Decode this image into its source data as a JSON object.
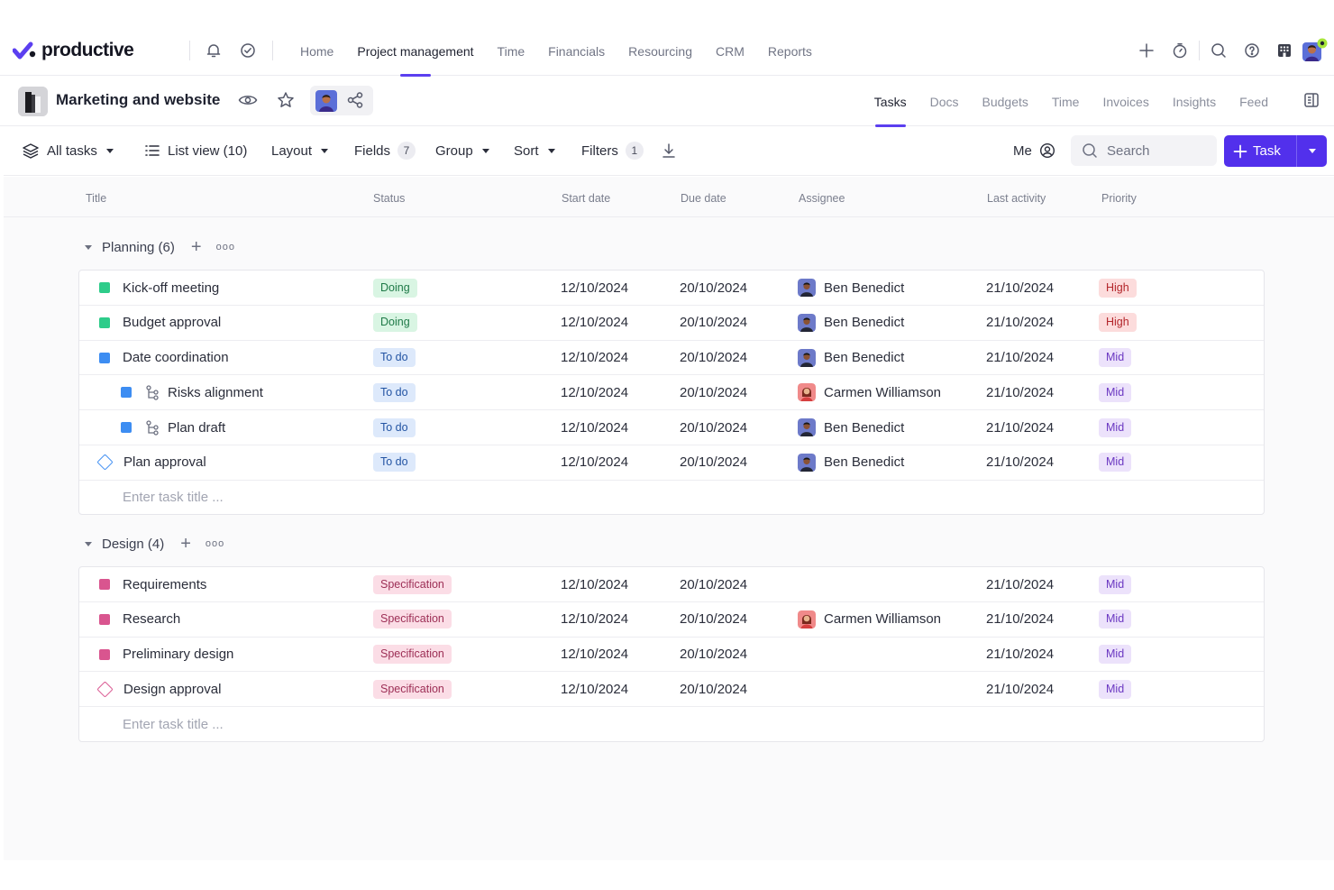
{
  "app": {
    "logo_text": "productive"
  },
  "topnav": {
    "items": [
      "Home",
      "Project management",
      "Time",
      "Financials",
      "Resourcing",
      "CRM",
      "Reports"
    ],
    "active_index": 1
  },
  "project": {
    "title": "Marketing and website",
    "tabs": [
      "Tasks",
      "Docs",
      "Budgets",
      "Time",
      "Invoices",
      "Insights",
      "Feed"
    ],
    "active_tab": 0
  },
  "toolbar": {
    "all_tasks": "All tasks",
    "list_view": "List view (10)",
    "layout": "Layout",
    "fields": "Fields",
    "fields_count": "7",
    "group": "Group",
    "sort": "Sort",
    "filters": "Filters",
    "filters_count": "1",
    "me": "Me",
    "search_placeholder": "Search",
    "task_button": "Task"
  },
  "columns": [
    "Title",
    "Status",
    "Start date",
    "Due date",
    "Assignee",
    "Last activity",
    "Priority"
  ],
  "colors": {
    "accent": "#5230ec",
    "green": "#2ecc8a",
    "blue": "#3d8df2",
    "pink": "#d9558f",
    "doing_bg": "#d9f5e3",
    "doing_fg": "#1f7a48",
    "todo_bg": "#dde9fb",
    "todo_fg": "#2354a3",
    "spec_bg": "#fbdde6",
    "spec_fg": "#9d2f56",
    "high_bg": "#fcdcdc",
    "high_fg": "#b3262b",
    "mid_bg": "#ece2fb",
    "mid_fg": "#6b38c2"
  },
  "groups": [
    {
      "name": "Planning (6)",
      "enter_placeholder": "Enter task title ...",
      "rows": [
        {
          "title": "Kick-off meeting",
          "marker": "square",
          "color": "green",
          "subtask": false,
          "status": "Doing",
          "status_kind": "doing",
          "start": "12/10/2024",
          "due": "20/10/2024",
          "assignee": "Ben Benedict",
          "avatar": "ben",
          "last": "21/10/2024",
          "priority": "High",
          "priority_kind": "high"
        },
        {
          "title": "Budget approval",
          "marker": "square",
          "color": "green",
          "subtask": false,
          "status": "Doing",
          "status_kind": "doing",
          "start": "12/10/2024",
          "due": "20/10/2024",
          "assignee": "Ben Benedict",
          "avatar": "ben",
          "last": "21/10/2024",
          "priority": "High",
          "priority_kind": "high"
        },
        {
          "title": "Date coordination",
          "marker": "square",
          "color": "blue",
          "subtask": false,
          "status": "To do",
          "status_kind": "todo",
          "start": "12/10/2024",
          "due": "20/10/2024",
          "assignee": "Ben Benedict",
          "avatar": "ben",
          "last": "21/10/2024",
          "priority": "Mid",
          "priority_kind": "mid"
        },
        {
          "title": "Risks alignment",
          "marker": "square",
          "color": "blue",
          "subtask": true,
          "status": "To do",
          "status_kind": "todo",
          "start": "12/10/2024",
          "due": "20/10/2024",
          "assignee": "Carmen Williamson",
          "avatar": "carmen",
          "last": "21/10/2024",
          "priority": "Mid",
          "priority_kind": "mid"
        },
        {
          "title": "Plan draft",
          "marker": "square",
          "color": "blue",
          "subtask": true,
          "status": "To do",
          "status_kind": "todo",
          "start": "12/10/2024",
          "due": "20/10/2024",
          "assignee": "Ben Benedict",
          "avatar": "ben",
          "last": "21/10/2024",
          "priority": "Mid",
          "priority_kind": "mid"
        },
        {
          "title": "Plan approval",
          "marker": "diamond",
          "color": "blue",
          "subtask": false,
          "status": "To do",
          "status_kind": "todo",
          "start": "12/10/2024",
          "due": "20/10/2024",
          "assignee": "Ben Benedict",
          "avatar": "ben",
          "last": "21/10/2024",
          "priority": "Mid",
          "priority_kind": "mid"
        }
      ]
    },
    {
      "name": "Design (4)",
      "enter_placeholder": "Enter task title ...",
      "rows": [
        {
          "title": "Requirements",
          "marker": "square",
          "color": "pink",
          "subtask": false,
          "status": "Specification",
          "status_kind": "spec",
          "start": "12/10/2024",
          "due": "20/10/2024",
          "assignee": "",
          "avatar": "",
          "last": "21/10/2024",
          "priority": "Mid",
          "priority_kind": "mid"
        },
        {
          "title": "Research",
          "marker": "square",
          "color": "pink",
          "subtask": false,
          "status": "Specification",
          "status_kind": "spec",
          "start": "12/10/2024",
          "due": "20/10/2024",
          "assignee": "Carmen Williamson",
          "avatar": "carmen",
          "last": "21/10/2024",
          "priority": "Mid",
          "priority_kind": "mid"
        },
        {
          "title": "Preliminary design",
          "marker": "square",
          "color": "pink",
          "subtask": false,
          "status": "Specification",
          "status_kind": "spec",
          "start": "12/10/2024",
          "due": "20/10/2024",
          "assignee": "",
          "avatar": "",
          "last": "21/10/2024",
          "priority": "Mid",
          "priority_kind": "mid"
        },
        {
          "title": "Design approval",
          "marker": "diamond",
          "color": "pink",
          "subtask": false,
          "status": "Specification",
          "status_kind": "spec",
          "start": "12/10/2024",
          "due": "20/10/2024",
          "assignee": "",
          "avatar": "",
          "last": "21/10/2024",
          "priority": "Mid",
          "priority_kind": "mid"
        }
      ]
    }
  ]
}
